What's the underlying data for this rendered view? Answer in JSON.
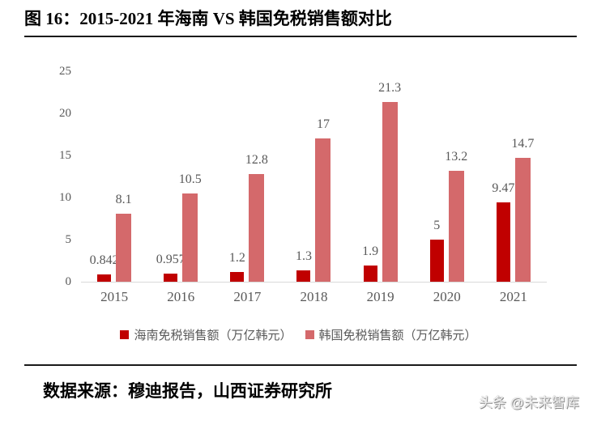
{
  "figure": {
    "title": "图 16：2015-2021 年海南 VS 韩国免税销售额对比"
  },
  "chart_data": {
    "type": "bar",
    "title": "2015-2021 年海南 VS 韩国免税销售额对比",
    "categories": [
      "2015",
      "2016",
      "2017",
      "2018",
      "2019",
      "2020",
      "2021"
    ],
    "series": [
      {
        "name": "海南免税销售额（万亿韩元）",
        "color": "#c00000",
        "values": [
          0.842,
          0.957,
          1.2,
          1.3,
          1.9,
          5,
          9.47
        ],
        "labels": [
          "0.842",
          "0.957",
          "1.2",
          "1.3",
          "1.9",
          "5",
          "9.47"
        ]
      },
      {
        "name": "韩国免税销售额（万亿韩元）",
        "color": "#d4696b",
        "values": [
          8.1,
          10.5,
          12.8,
          17,
          21.3,
          13.2,
          14.7
        ],
        "labels": [
          "8.1",
          "10.5",
          "12.8",
          "17",
          "21.3",
          "13.2",
          "14.7"
        ]
      }
    ],
    "xlabel": "",
    "ylabel": "",
    "ylim": [
      0,
      25
    ],
    "yticks": [
      "0",
      "5",
      "10",
      "15",
      "20",
      "25"
    ],
    "grid": false,
    "legend_position": "bottom",
    "axis_text_color": "#595959",
    "baseline_color": "#d9d9d9"
  },
  "footer": {
    "source": "数据来源：穆迪报告，山西证券研究所",
    "watermark": "头条 @未来智库"
  }
}
